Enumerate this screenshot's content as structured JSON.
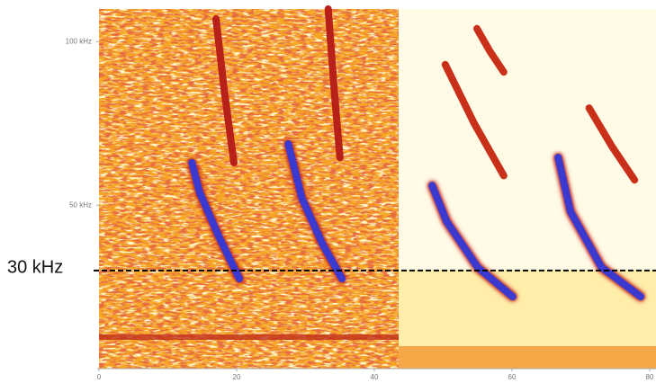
{
  "chart_data": {
    "type": "spectrogram",
    "xlim": [
      0,
      80
    ],
    "xticks": [
      0,
      20,
      40,
      60,
      80
    ],
    "ylim": [
      0,
      110
    ],
    "yticks": [
      {
        "value": 50,
        "label": "50 kHz"
      },
      {
        "value": 100,
        "label": "100 kHz"
      }
    ],
    "reference_line": {
      "value": 30,
      "label": "30 kHz"
    },
    "series": [
      {
        "color": "#3a3ad0",
        "x": [
          13.5,
          14.6,
          17.5,
          20.4
        ],
        "values": [
          63,
          54,
          40,
          27.5
        ]
      },
      {
        "color": "#b8201a",
        "x": [
          17,
          18.2,
          19.6
        ],
        "values": [
          107,
          85,
          63
        ]
      },
      {
        "color": "#3a3ad0",
        "x": [
          27.5,
          29.5,
          32.5,
          35.3
        ],
        "values": [
          68.7,
          52,
          38,
          27.5
        ]
      },
      {
        "color": "#b8201a",
        "x": [
          33.3,
          34.1,
          35
        ],
        "values": [
          110,
          87,
          64.5
        ]
      },
      {
        "color": "#3a3ad0",
        "x": [
          48.4,
          50.5,
          55,
          60.1
        ],
        "values": [
          56,
          45,
          31,
          22
        ]
      },
      {
        "color": "#c8301a",
        "x": [
          50.3,
          54.5,
          58.8
        ],
        "values": [
          93,
          75,
          59
        ]
      },
      {
        "color": "#c8301a",
        "x": [
          54.9,
          56.8,
          58.8
        ],
        "values": [
          104,
          97,
          90.7
        ]
      },
      {
        "color": "#3a3ad0",
        "x": [
          66.7,
          68.5,
          73,
          78.7
        ],
        "values": [
          64.6,
          48,
          31,
          22
        ]
      },
      {
        "color": "#c8301a",
        "x": [
          71.2,
          74.5,
          77.8
        ],
        "values": [
          79.7,
          68,
          57.7
        ]
      }
    ]
  }
}
